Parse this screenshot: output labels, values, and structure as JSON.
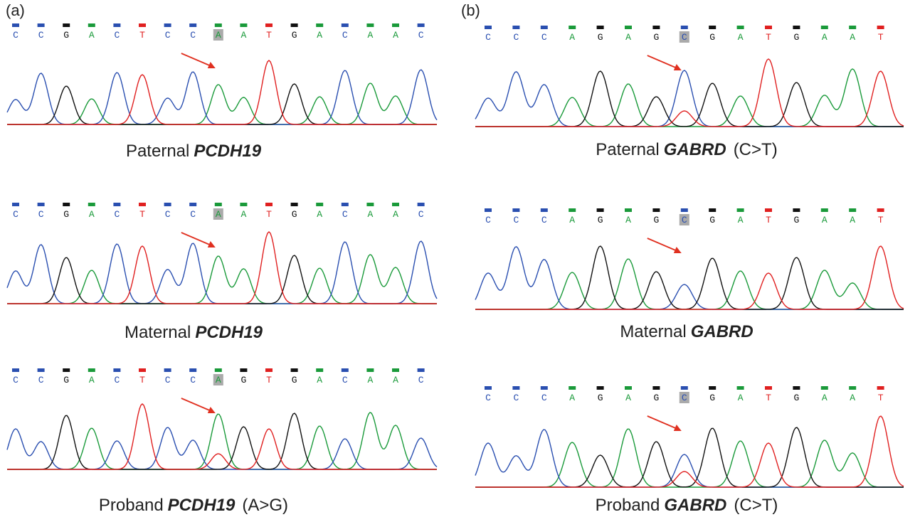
{
  "panels": [
    {
      "label": "(a)",
      "highlight": 8,
      "traces": [
        {
          "bases": [
            "C",
            "C",
            "G",
            "A",
            "C",
            "T",
            "C",
            "C",
            "A",
            "A",
            "T",
            "G",
            "A",
            "C",
            "A",
            "A",
            "C"
          ],
          "caption": {
            "prefix": "Paternal",
            "gene": "PCDH19"
          }
        },
        {
          "bases": [
            "C",
            "C",
            "G",
            "A",
            "C",
            "T",
            "C",
            "C",
            "A",
            "A",
            "T",
            "G",
            "A",
            "C",
            "A",
            "A",
            "C"
          ],
          "caption": {
            "prefix": "Maternal",
            "gene": "PCDH19"
          }
        },
        {
          "bases": [
            "C",
            "C",
            "G",
            "A",
            "C",
            "T",
            "C",
            "C",
            "A",
            "G",
            "T",
            "G",
            "A",
            "C",
            "A",
            "A",
            "C"
          ],
          "caption": {
            "prefix": "Proband",
            "gene": "PCDH19",
            "suffix": "(A>G)"
          }
        }
      ]
    },
    {
      "label": "(b)",
      "highlight": 7,
      "traces": [
        {
          "bases": [
            "C",
            "C",
            "C",
            "A",
            "G",
            "A",
            "G",
            "C",
            "G",
            "A",
            "T",
            "G",
            "A",
            "A",
            "T"
          ],
          "caption": {
            "prefix": "Paternal",
            "gene": "GABRD",
            "suffix": "(C>T)"
          }
        },
        {
          "bases": [
            "C",
            "C",
            "C",
            "A",
            "G",
            "A",
            "G",
            "C",
            "G",
            "A",
            "T",
            "G",
            "A",
            "A",
            "T"
          ],
          "caption": {
            "prefix": "Maternal",
            "gene": "GABRD"
          }
        },
        {
          "bases": [
            "C",
            "C",
            "C",
            "A",
            "G",
            "A",
            "G",
            "C",
            "G",
            "A",
            "T",
            "G",
            "A",
            "A",
            "T"
          ],
          "caption": {
            "prefix": "Proband",
            "gene": "GABRD",
            "suffix": "(C>T)"
          }
        }
      ]
    }
  ]
}
